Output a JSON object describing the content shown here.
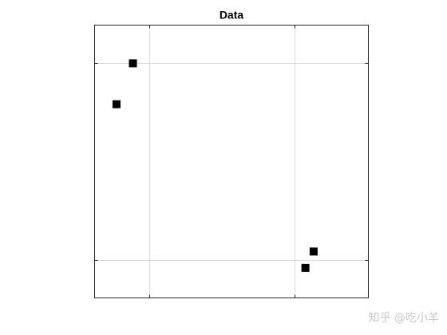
{
  "chart_data": {
    "type": "scatter",
    "title": "Data",
    "xlabel": "",
    "ylabel": "",
    "xlim": [
      0,
      1
    ],
    "ylim": [
      0,
      1
    ],
    "xticks": [
      0.2,
      0.73
    ],
    "yticks": [
      0.14,
      0.86
    ],
    "xtick_labels": [
      "",
      ""
    ],
    "ytick_labels": [
      "",
      ""
    ],
    "grid": true,
    "marker": "square",
    "marker_color": "#000000",
    "grid_color": "#d9d9d9",
    "series": [
      {
        "points": [
          {
            "x": 0.14,
            "y": 0.86
          },
          {
            "x": 0.08,
            "y": 0.71
          },
          {
            "x": 0.8,
            "y": 0.17
          },
          {
            "x": 0.77,
            "y": 0.11
          }
        ]
      }
    ]
  },
  "watermark": {
    "text": "知乎 @吃小羊"
  }
}
